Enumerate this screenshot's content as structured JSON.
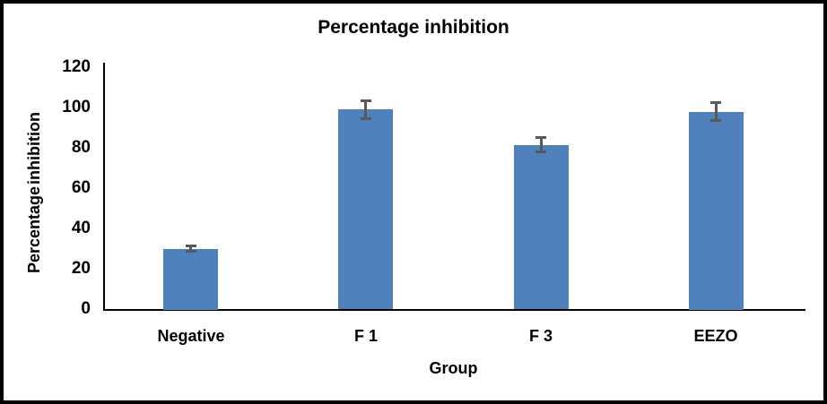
{
  "window": {
    "background": "#ffffff",
    "frame_border_color": "#000000"
  },
  "chart_data": {
    "type": "bar",
    "title": "Percentage inhibition",
    "xlabel": "Group",
    "ylabel": "Percentage inhibition",
    "categories": [
      "Negative",
      "F 1",
      "F 3",
      "EEZO"
    ],
    "values": [
      30,
      99,
      81.5,
      98
    ],
    "errors": [
      1.8,
      5.2,
      4.2,
      5.2
    ],
    "ylim": [
      0,
      120
    ],
    "yticks": [
      0,
      20,
      40,
      60,
      80,
      100,
      120
    ],
    "grid": false,
    "legend": false,
    "bar_color": "#4F81BD",
    "error_bar_color": "#595959",
    "axis_color": "#000000",
    "text_color": "#000000"
  }
}
